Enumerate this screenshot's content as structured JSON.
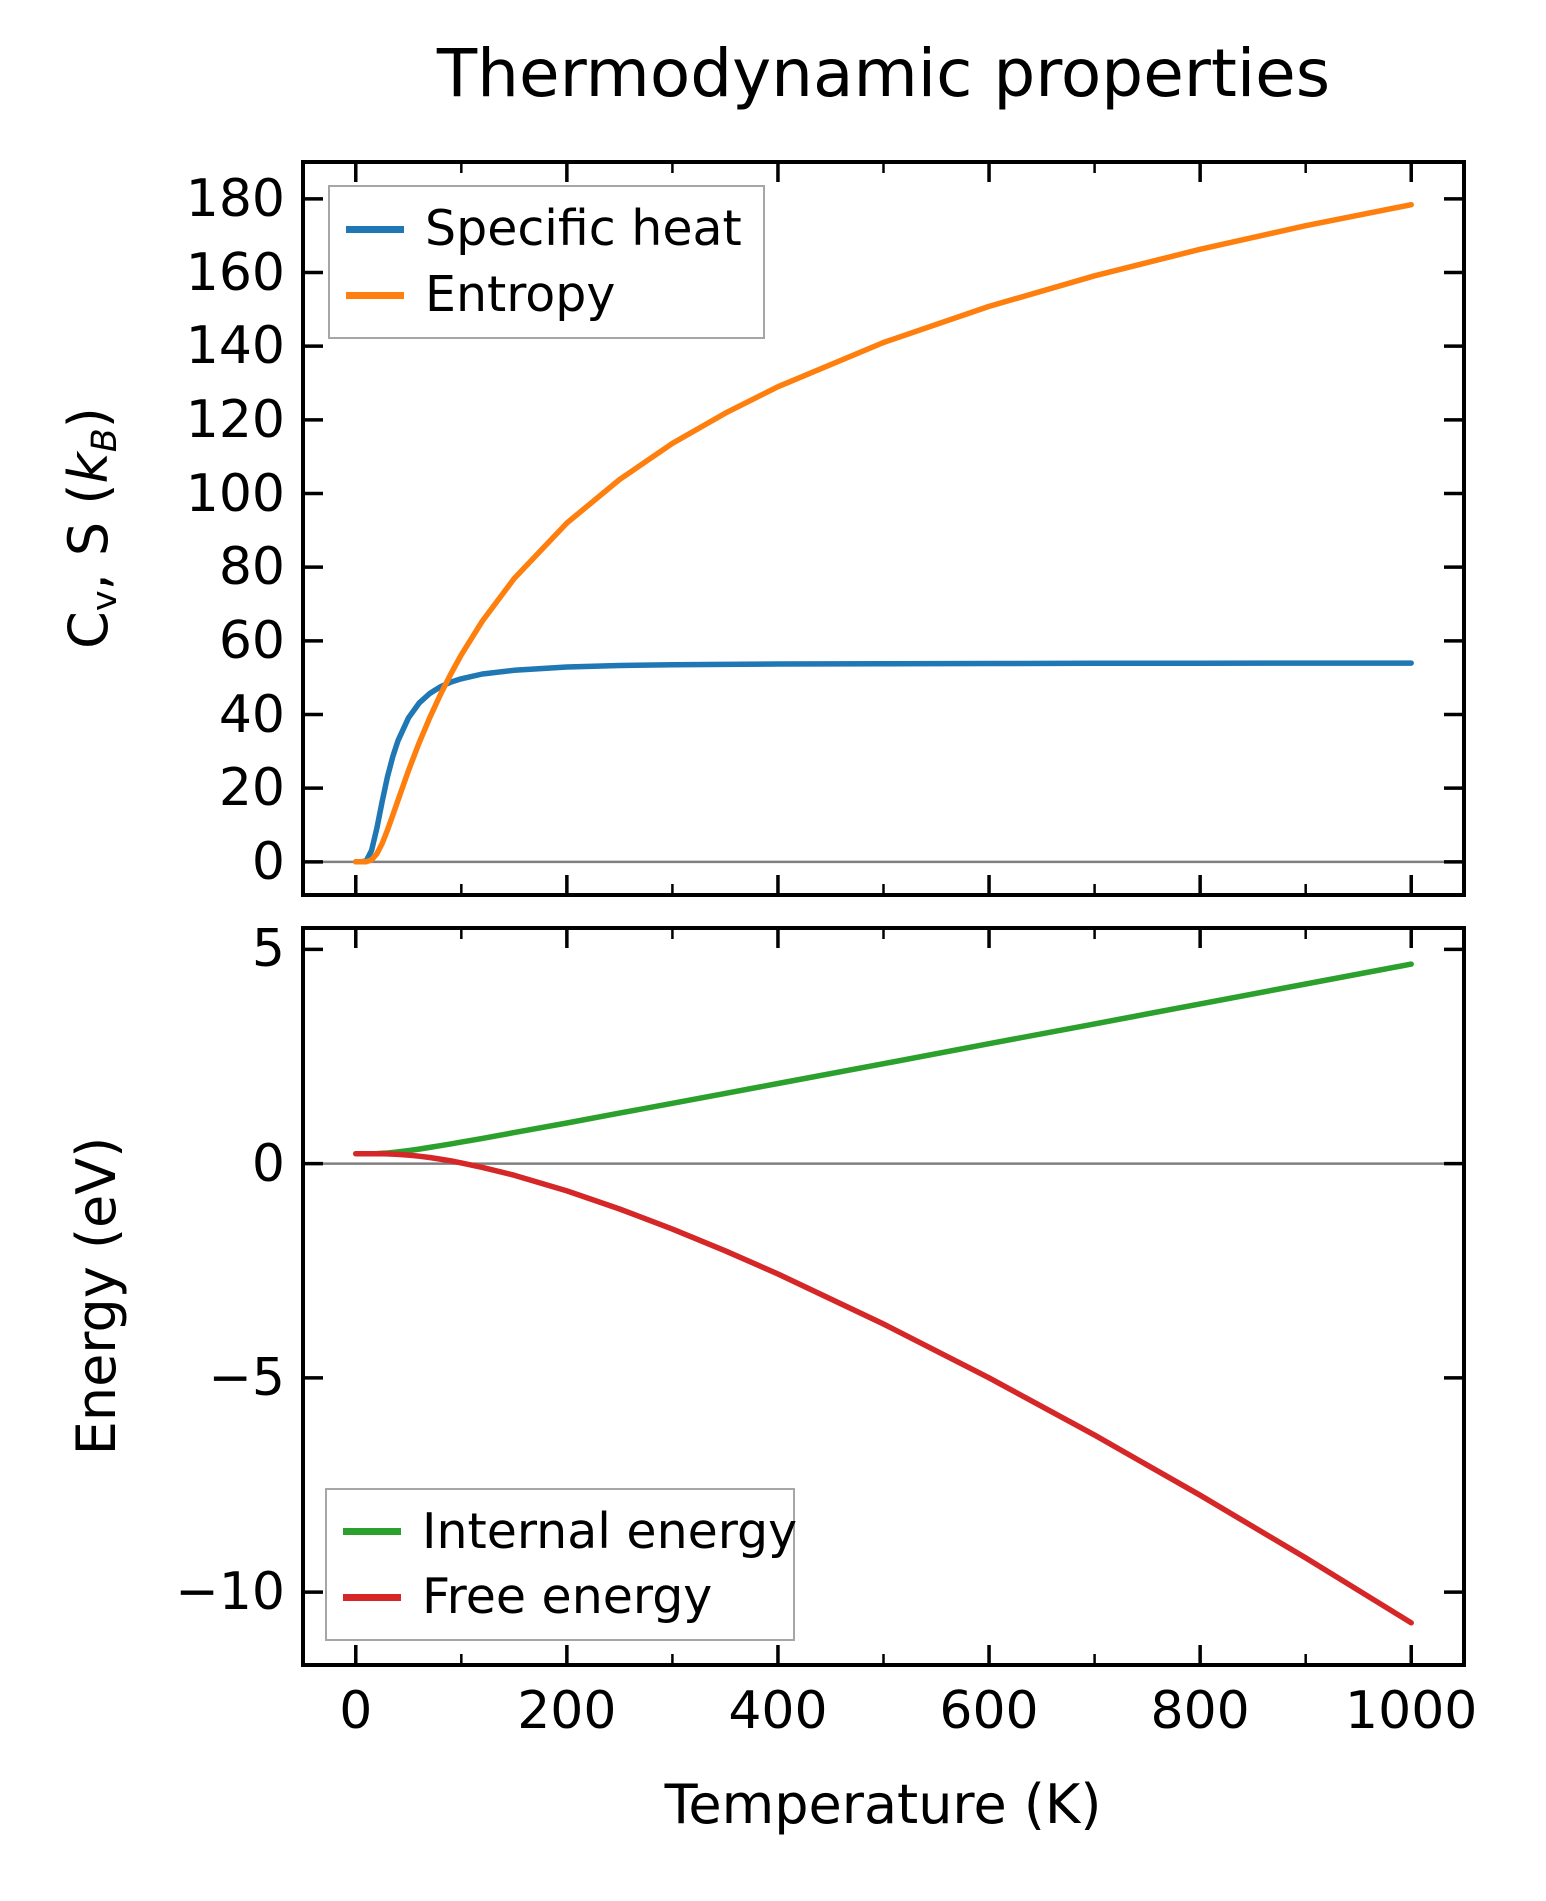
{
  "title": "Thermodynamic properties",
  "colors": {
    "specific_heat": "#1f77b4",
    "entropy": "#ff7f0e",
    "internal_energy": "#2ca02c",
    "free_energy": "#d62728",
    "zero_line": "#808080",
    "spine": "#000000",
    "legend_border": "#a6a6a6",
    "background": "#ffffff"
  },
  "chart_data": [
    {
      "type": "line",
      "title": "Thermodynamic properties",
      "ylabel": "Cv, S (kB)",
      "ylabel_segments": [
        {
          "t": "C"
        },
        {
          "t": "v",
          "sub": true
        },
        {
          "t": ", S ("
        },
        {
          "t": "k",
          "italic": true
        },
        {
          "t": "B",
          "sub": true,
          "italic": true
        },
        {
          "t": ")"
        }
      ],
      "xlabel": "",
      "xlim": [
        -50,
        1050
      ],
      "ylim": [
        -9,
        190
      ],
      "grid": false,
      "zero_line": 0,
      "legend_position": "upper-left",
      "xticks_major": [
        0,
        200,
        400,
        600,
        800,
        1000
      ],
      "xticks_minor": [
        100,
        300,
        500,
        700,
        900
      ],
      "xtick_labels_visible": false,
      "yticks_major": [
        0,
        20,
        40,
        60,
        80,
        100,
        120,
        140,
        160,
        180
      ],
      "ytick_labels": [
        "0",
        "20",
        "40",
        "60",
        "80",
        "100",
        "120",
        "140",
        "160",
        "180"
      ],
      "x": [
        0,
        5,
        10,
        15,
        20,
        25,
        30,
        35,
        40,
        50,
        60,
        70,
        80,
        90,
        100,
        120,
        150,
        200,
        250,
        300,
        350,
        400,
        500,
        600,
        700,
        800,
        900,
        1000
      ],
      "series": [
        {
          "name": "Specific heat",
          "color": "#1f77b4",
          "values": [
            0,
            0,
            0.25,
            3.1,
            9.2,
            16.4,
            23.0,
            28.5,
            32.9,
            39.1,
            43.1,
            45.7,
            47.5,
            48.8,
            49.7,
            51.0,
            52.0,
            52.9,
            53.3,
            53.5,
            53.6,
            53.7,
            53.8,
            53.85,
            53.9,
            53.9,
            53.95,
            53.95
          ]
        },
        {
          "name": "Entropy",
          "color": "#ff7f0e",
          "values": [
            0,
            0,
            0.03,
            0.53,
            2.2,
            5.0,
            8.6,
            12.6,
            16.7,
            24.8,
            32.3,
            39.1,
            45.3,
            51.0,
            56.2,
            65.4,
            76.9,
            92.0,
            103.8,
            113.6,
            121.8,
            129.0,
            141.0,
            150.8,
            159.1,
            166.3,
            172.7,
            178.4
          ]
        }
      ]
    },
    {
      "type": "line",
      "title": "",
      "ylabel": "Energy (eV)",
      "xlabel": "Temperature (K)",
      "xlim": [
        -50,
        1050
      ],
      "ylim": [
        -11.7,
        5.5
      ],
      "grid": false,
      "zero_line": 0,
      "legend_position": "lower-left",
      "xticks_major": [
        0,
        200,
        400,
        600,
        800,
        1000
      ],
      "xticks_minor": [
        100,
        300,
        500,
        700,
        900
      ],
      "xtick_labels_visible": true,
      "xtick_labels": [
        "0",
        "200",
        "400",
        "600",
        "800",
        "1000"
      ],
      "yticks_major": [
        5,
        0,
        -5,
        -10
      ],
      "ytick_labels": [
        "5",
        "0",
        "−5",
        "−10"
      ],
      "x": [
        0,
        5,
        10,
        15,
        20,
        25,
        30,
        35,
        40,
        50,
        60,
        70,
        80,
        90,
        100,
        120,
        150,
        200,
        250,
        300,
        350,
        400,
        500,
        600,
        700,
        800,
        900,
        1000
      ],
      "series": [
        {
          "name": "Internal energy",
          "color": "#2ca02c",
          "values": [
            0.233,
            0.233,
            0.233,
            0.233,
            0.236,
            0.241,
            0.25,
            0.261,
            0.274,
            0.306,
            0.341,
            0.379,
            0.42,
            0.461,
            0.504,
            0.59,
            0.724,
            0.95,
            1.179,
            1.409,
            1.64,
            1.871,
            2.334,
            2.799,
            3.263,
            3.728,
            4.192,
            4.657
          ]
        },
        {
          "name": "Free energy",
          "color": "#d62728",
          "values": [
            0.233,
            0.233,
            0.233,
            0.233,
            0.232,
            0.231,
            0.228,
            0.223,
            0.217,
            0.199,
            0.174,
            0.144,
            0.107,
            0.066,
            0.019,
            -0.086,
            -0.27,
            -0.636,
            -1.057,
            -1.528,
            -2.034,
            -2.575,
            -3.741,
            -4.998,
            -6.334,
            -7.737,
            -9.2,
            -10.716
          ]
        }
      ]
    }
  ]
}
